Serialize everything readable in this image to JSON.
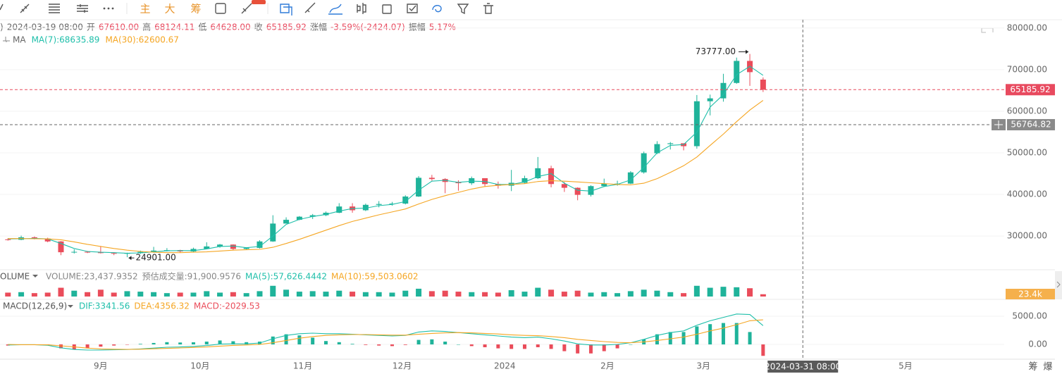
{
  "toolbar": {
    "buttons": [
      "主",
      "大",
      "筹"
    ]
  },
  "chart_data": [
    {
      "type": "candlestick",
      "info": [
        {
          "text": ")",
          "color": "#666"
        },
        {
          "text": "2024-03-19 08:00",
          "color": "#666"
        },
        {
          "text": "开",
          "color": "#666"
        },
        {
          "text": "67610.00",
          "color": "#e84a5f"
        },
        {
          "text": "高",
          "color": "#666"
        },
        {
          "text": "68124.11",
          "color": "#e84a5f"
        },
        {
          "text": "低",
          "color": "#666"
        },
        {
          "text": "64628.00",
          "color": "#e84a5f"
        },
        {
          "text": "收",
          "color": "#666"
        },
        {
          "text": "65185.92",
          "color": "#e84a5f"
        },
        {
          "text": "涨幅",
          "color": "#666"
        },
        {
          "text": "-3.59%(-2424.07)",
          "color": "#e84a5f"
        },
        {
          "text": "振幅",
          "color": "#666"
        },
        {
          "text": "5.17%",
          "color": "#e84a5f"
        }
      ],
      "ma_legend": [
        {
          "text": "MA",
          "color": "#666"
        },
        {
          "text": "MA(7):68635.89",
          "color": "#1fbfaa"
        },
        {
          "text": "MA(30):62600.67",
          "color": "#f5a623"
        }
      ],
      "up_color": "#1fb39a",
      "down_color": "#ea4c5a",
      "xlim": [
        -0.6,
        75.2
      ],
      "xticks": [
        {
          "value": 7,
          "label": "9月"
        },
        {
          "value": 14.5,
          "label": "10月"
        },
        {
          "value": 22.25,
          "label": "11月"
        },
        {
          "value": 29.75,
          "label": "12月"
        },
        {
          "value": 37.5,
          "label": "2024"
        },
        {
          "value": 45.25,
          "label": "2月"
        },
        {
          "value": 52.5,
          "label": "3月"
        },
        {
          "value": 67.75,
          "label": "5月"
        }
      ],
      "ylim": [
        22400,
        82000
      ],
      "yticks": [
        {
          "value": 30000,
          "label": "30000.00"
        },
        {
          "value": 40000,
          "label": "40000.00"
        },
        {
          "value": 50000,
          "label": "50000.00"
        },
        {
          "value": 60000,
          "label": "60000.00"
        },
        {
          "value": 70000,
          "label": "70000.00"
        },
        {
          "value": 80000,
          "label": "80000.00"
        }
      ],
      "grid": true,
      "open": [
        29200,
        29100,
        29700,
        29400,
        28700,
        26100,
        26200,
        26100,
        25900,
        25750,
        25900,
        26200,
        26500,
        26600,
        26300,
        26900,
        27500,
        27950,
        26900,
        27150,
        28700,
        33000,
        33900,
        34650,
        35000,
        35600,
        37100,
        36200,
        37500,
        37700,
        37800,
        39500,
        44000,
        43700,
        43000,
        42700,
        43900,
        42500,
        42100,
        42800,
        43900,
        46300,
        42500,
        41600,
        39900,
        42000,
        42600,
        42600,
        45300,
        49900,
        52100,
        52300,
        51600,
        62400,
        63100,
        66800,
        72100,
        67610
      ],
      "high": [
        29500,
        30100,
        29900,
        29600,
        28800,
        26800,
        26400,
        27600,
        26100,
        26000,
        26500,
        27400,
        27100,
        26700,
        27200,
        28500,
        28100,
        28000,
        27300,
        29000,
        35000,
        34500,
        34800,
        35300,
        35900,
        37900,
        37900,
        37800,
        38400,
        38200,
        39800,
        44400,
        44700,
        43900,
        43400,
        44300,
        43900,
        43100,
        45900,
        44500,
        49000,
        46900,
        43000,
        41700,
        42200,
        43800,
        43300,
        45600,
        50300,
        52800,
        52600,
        52300,
        63900,
        64000,
        69000,
        72900,
        73777,
        68124.11
      ],
      "low": [
        28900,
        29000,
        29200,
        28500,
        25400,
        25800,
        25900,
        25800,
        25400,
        24901,
        25700,
        26000,
        26300,
        26000,
        26200,
        26800,
        27200,
        26600,
        26800,
        27000,
        28600,
        33300,
        33800,
        34100,
        34800,
        35500,
        35600,
        36000,
        36900,
        37300,
        37600,
        39400,
        43300,
        40300,
        40900,
        42300,
        41800,
        41400,
        40800,
        42600,
        43700,
        41700,
        40600,
        38600,
        39500,
        41800,
        42100,
        42500,
        45000,
        49700,
        50800,
        50600,
        51000,
        59000,
        62300,
        66600,
        66100,
        64628
      ],
      "close": [
        29100,
        29700,
        29400,
        28700,
        26100,
        26200,
        26100,
        25900,
        25750,
        25900,
        26200,
        26500,
        26600,
        26300,
        26900,
        27500,
        27950,
        26900,
        27150,
        28700,
        33000,
        33900,
        34650,
        35000,
        35600,
        37100,
        36200,
        37500,
        37700,
        37800,
        39500,
        44000,
        43700,
        43000,
        42700,
        43900,
        42500,
        42100,
        42800,
        43900,
        46300,
        42500,
        41600,
        39900,
        42000,
        42600,
        42600,
        45300,
        49900,
        52100,
        52300,
        51600,
        62400,
        63100,
        66800,
        72100,
        69400,
        65185.92
      ],
      "series": [
        {
          "color": "#1fbfaa",
          "values": [
            29300,
            29350,
            29450,
            29300,
            28200,
            27000,
            26300,
            26100,
            26000,
            25850,
            25950,
            26200,
            26450,
            26500,
            26500,
            26900,
            27500,
            27600,
            27200,
            27500,
            30000,
            32800,
            34000,
            34700,
            35200,
            36000,
            36600,
            36700,
            37300,
            37600,
            38300,
            41000,
            43200,
            43400,
            42900,
            43200,
            43100,
            42400,
            42400,
            43000,
            44300,
            45000,
            42700,
            41000,
            40800,
            41900,
            42400,
            43500,
            46500,
            50000,
            51800,
            52000,
            55000,
            61000,
            64000,
            68800,
            70800,
            68635.89
          ]
        },
        {
          "color": "#f5a623",
          "values": [
            29400,
            29400,
            29350,
            29300,
            29100,
            28600,
            28000,
            27500,
            27000,
            26600,
            26300,
            26100,
            26000,
            26000,
            26100,
            26200,
            26400,
            26600,
            26700,
            26800,
            27300,
            28200,
            29200,
            30300,
            31400,
            32500,
            33500,
            34300,
            35100,
            35800,
            36500,
            37700,
            38800,
            39700,
            40500,
            41300,
            41900,
            42200,
            42400,
            42600,
            43100,
            43300,
            43200,
            43000,
            42800,
            42600,
            42400,
            42300,
            42700,
            43800,
            45300,
            46900,
            49000,
            51800,
            54500,
            57500,
            60300,
            62600.67
          ]
        }
      ],
      "annotations": [
        {
          "text": "73777.00",
          "index": 56,
          "at": "high"
        },
        {
          "text": "24901.00",
          "index": 9,
          "at": "low"
        }
      ],
      "last_price_label": "65185.92",
      "crosshair": {
        "x": 60,
        "y": 56764.82,
        "x_label": "2024-03-31 08:00",
        "y_label": "56764.82"
      }
    },
    {
      "type": "bar",
      "legend": [
        {
          "text": "VOLUME",
          "color": "#555"
        },
        {
          "text": "VOLUME:23,437.9352",
          "color": "#888"
        },
        {
          "text": "预估成交量:91,900.9576",
          "color": "#888"
        },
        {
          "text": "MA(5):57,626.4442",
          "color": "#1fbfaa"
        },
        {
          "text": "MA(10):59,503.0602",
          "color": "#f5a623"
        }
      ],
      "ylim": [
        0,
        130000
      ],
      "values": [
        40000,
        45000,
        35000,
        40000,
        90000,
        60000,
        45000,
        70000,
        40000,
        55000,
        50000,
        45000,
        35000,
        40000,
        40000,
        55000,
        40000,
        45000,
        35000,
        55000,
        110000,
        70000,
        50000,
        55000,
        50000,
        60000,
        50000,
        45000,
        45000,
        40000,
        60000,
        80000,
        55000,
        60000,
        50000,
        45000,
        45000,
        40000,
        65000,
        50000,
        90000,
        70000,
        50000,
        60000,
        40000,
        45000,
        35000,
        55000,
        70000,
        60000,
        45000,
        35000,
        110000,
        90000,
        100000,
        95000,
        85000,
        23437.9352
      ],
      "tag": "23.4k",
      "tag_color": "#f5b04c"
    },
    {
      "type": "macd",
      "legend": [
        {
          "text": "MACD(12,26,9)",
          "color": "#555"
        },
        {
          "text": "DIF:3341.56",
          "color": "#1fbfaa"
        },
        {
          "text": "DEA:4356.32",
          "color": "#f5a623"
        },
        {
          "text": "MACD:-2029.53",
          "color": "#ea4c5a"
        }
      ],
      "ylim": [
        -2625,
        7375
      ],
      "yticks": [
        {
          "value": 0,
          "label": "0.00"
        },
        {
          "value": 5000,
          "label": "5000.00"
        }
      ],
      "series": [
        {
          "color": "#1fbfaa",
          "values": [
            -100,
            -50,
            -50,
            -150,
            -600,
            -900,
            -1000,
            -1000,
            -950,
            -900,
            -800,
            -650,
            -500,
            -450,
            -350,
            -200,
            50,
            100,
            100,
            250,
            1000,
            1600,
            1900,
            2000,
            1900,
            1900,
            1800,
            1700,
            1600,
            1500,
            1600,
            2200,
            2400,
            2300,
            2100,
            1900,
            1700,
            1500,
            1300,
            1200,
            1300,
            1000,
            600,
            100,
            -100,
            -100,
            0,
            300,
            900,
            1600,
            2100,
            2400,
            3400,
            4200,
            4800,
            5400,
            5300,
            3341.56
          ]
        },
        {
          "color": "#f5a623",
          "values": [
            0,
            -50,
            -50,
            -80,
            -250,
            -450,
            -650,
            -800,
            -850,
            -870,
            -850,
            -780,
            -700,
            -620,
            -540,
            -450,
            -300,
            -180,
            -100,
            0,
            300,
            700,
            1100,
            1400,
            1600,
            1700,
            1750,
            1750,
            1700,
            1650,
            1650,
            1800,
            1950,
            2050,
            2100,
            2050,
            1950,
            1850,
            1700,
            1600,
            1550,
            1400,
            1200,
            900,
            700,
            500,
            350,
            300,
            450,
            700,
            1000,
            1300,
            1800,
            2400,
            2900,
            3500,
            4200,
            4356.32
          ]
        }
      ],
      "histogram": [
        -200,
        0,
        0,
        -140,
        -700,
        -900,
        -700,
        -400,
        -200,
        -60,
        100,
        260,
        400,
        340,
        380,
        500,
        700,
        560,
        400,
        500,
        1400,
        1800,
        1600,
        1200,
        600,
        400,
        100,
        -100,
        -200,
        -300,
        -100,
        800,
        900,
        500,
        0,
        -300,
        -500,
        -700,
        -800,
        -800,
        -500,
        -800,
        -1200,
        -1600,
        -1600,
        -1200,
        -700,
        0,
        900,
        1800,
        2200,
        2200,
        3200,
        3600,
        3800,
        3800,
        2200,
        -2029.53
      ]
    }
  ],
  "corner": [
    "筹",
    "爆"
  ]
}
